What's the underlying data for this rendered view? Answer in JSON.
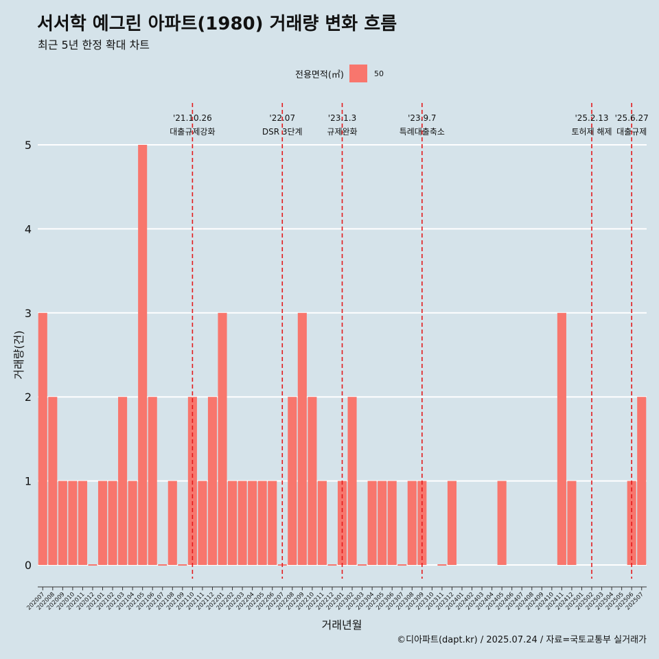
{
  "title": "서서학 예그린 아파트(1980) 거래량 변화 흐름",
  "subtitle": "최근 5년 한정 확대 차트",
  "caption": "©디아파트(dapt.kr) / 2025.07.24 / 자료=국토교통부 실거래가",
  "legend": {
    "title": "전용면적(㎡)",
    "item": "50",
    "color": "#f8766d"
  },
  "chart_data": {
    "type": "bar",
    "xlabel": "거래년월",
    "ylabel": "거래량(건)",
    "ylim": [
      0,
      5
    ],
    "yticks": [
      0,
      1,
      2,
      3,
      4,
      5
    ],
    "grid": true,
    "legend_position": "top",
    "bar_color": "#f8766d",
    "categories": [
      "202007",
      "202008",
      "202009",
      "202010",
      "202011",
      "202012",
      "202101",
      "202102",
      "202103",
      "202104",
      "202105",
      "202106",
      "202107",
      "202108",
      "202109",
      "202110",
      "202111",
      "202112",
      "202201",
      "202202",
      "202203",
      "202204",
      "202205",
      "202206",
      "202207",
      "202208",
      "202209",
      "202210",
      "202211",
      "202212",
      "202301",
      "202302",
      "202303",
      "202304",
      "202305",
      "202306",
      "202307",
      "202308",
      "202309",
      "202310",
      "202311",
      "202312",
      "202401",
      "202402",
      "202403",
      "202404",
      "202405",
      "202406",
      "202407",
      "202408",
      "202409",
      "202410",
      "202411",
      "202412",
      "202501",
      "202502",
      "202503",
      "202504",
      "202505",
      "202506",
      "202507"
    ],
    "series": [
      {
        "values": [
          3,
          2,
          1,
          1,
          1,
          0,
          1,
          1,
          2,
          1,
          5,
          2,
          0,
          1,
          0,
          2,
          1,
          2,
          3,
          1,
          1,
          1,
          1,
          1,
          0,
          2,
          3,
          2,
          1,
          0,
          1,
          2,
          0,
          1,
          1,
          1,
          0,
          1,
          1,
          0,
          0,
          1,
          0,
          0,
          0,
          0,
          1,
          0,
          0,
          0,
          0,
          0,
          3,
          1,
          0,
          0,
          0,
          0,
          0,
          1,
          2
        ]
      }
    ],
    "zero_value_ticks": [
      "202012",
      "202107",
      "202109",
      "202207",
      "202212",
      "202303",
      "202307",
      "202311"
    ],
    "annotations": [
      {
        "x": "202110",
        "date": "'21.10.26",
        "label": "대출규제강화"
      },
      {
        "x": "202207",
        "date": "'22.07",
        "label": "DSR 3단계"
      },
      {
        "x": "202301",
        "date": "'23.1.3",
        "label": "규제완화"
      },
      {
        "x": "202309",
        "date": "'23.9.7",
        "label": "특례대출축소"
      },
      {
        "x": "202502",
        "date": "'25.2.13",
        "label": "토허제 해제"
      },
      {
        "x": "202506",
        "date": "'25.6.27",
        "label": "대출규제"
      }
    ]
  }
}
